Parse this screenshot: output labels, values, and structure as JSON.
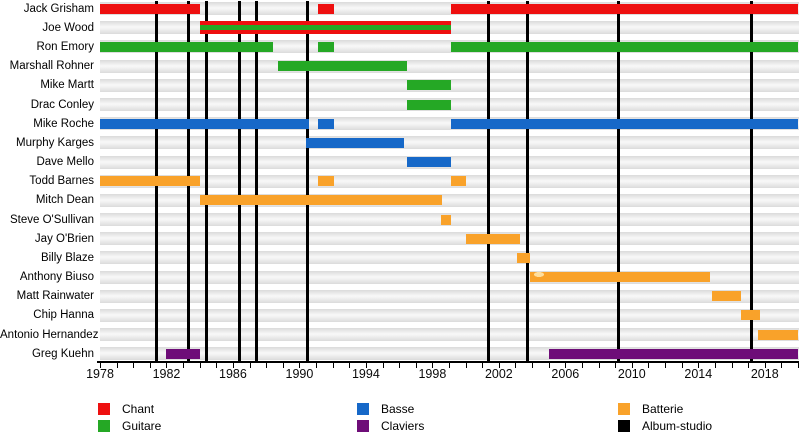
{
  "chart_data": {
    "type": "timeline",
    "title": "",
    "description": "Band members timeline (Gantt-style) with studio-album release markers",
    "x_axis": {
      "start": 1978,
      "end": 2020,
      "tick_every_years": 1,
      "label_every_years": 4,
      "year_labels": [
        "1978",
        "1982",
        "1986",
        "1990",
        "1994",
        "1998",
        "2002",
        "2006",
        "2010",
        "2014",
        "2018"
      ]
    },
    "colors": {
      "chant": "#ee1010",
      "guitare": "#25a825",
      "basse": "#1668c8",
      "claviers": "#6e0d78",
      "batterie": "#f9a22a",
      "album": "#000000",
      "row_band": "#e2e2e2"
    },
    "album_lines_years": [
      1981.4,
      1983.3,
      1984.4,
      1986.4,
      1987.4,
      1990.5,
      2001.4,
      2003.7,
      2009.2,
      2017.2
    ],
    "members": [
      {
        "name": "Jack Grisham",
        "role": "chant",
        "bars": [
          [
            1978.0,
            1984.0
          ],
          [
            1991.1,
            1992.1
          ],
          [
            1999.1,
            2020.0
          ]
        ]
      },
      {
        "name": "Joe Wood",
        "role": "chant+guitare",
        "bars": [
          [
            1984.0,
            1999.1
          ]
        ]
      },
      {
        "name": "Ron Emory",
        "role": "guitare",
        "bars": [
          [
            1978.0,
            1988.4
          ],
          [
            1991.1,
            1992.1
          ],
          [
            1999.1,
            2020.0
          ]
        ]
      },
      {
        "name": "Marshall Rohner",
        "role": "guitare",
        "bars": [
          [
            1988.7,
            1996.5
          ]
        ]
      },
      {
        "name": "Mike Martt",
        "role": "guitare",
        "bars": [
          [
            1996.5,
            1999.1
          ]
        ]
      },
      {
        "name": "Drac Conley",
        "role": "guitare",
        "bars": [
          [
            1996.5,
            1999.1
          ]
        ]
      },
      {
        "name": "Mike Roche",
        "role": "basse",
        "bars": [
          [
            1978.0,
            1990.6
          ],
          [
            1991.1,
            1992.1
          ],
          [
            1999.1,
            2020.0
          ]
        ]
      },
      {
        "name": "Murphy Karges",
        "role": "basse",
        "bars": [
          [
            1990.4,
            1996.3
          ]
        ]
      },
      {
        "name": "Dave Mello",
        "role": "basse",
        "bars": [
          [
            1996.5,
            1999.1
          ]
        ]
      },
      {
        "name": "Todd Barnes",
        "role": "batterie",
        "bars": [
          [
            1978.0,
            1984.0
          ],
          [
            1991.1,
            1992.1
          ],
          [
            1999.1,
            2000.0
          ]
        ]
      },
      {
        "name": "Mitch Dean",
        "role": "batterie",
        "bars": [
          [
            1984.0,
            1998.6
          ]
        ]
      },
      {
        "name": "Steve O'Sullivan",
        "role": "batterie",
        "bars": [
          [
            1998.5,
            1999.1
          ]
        ]
      },
      {
        "name": "Jay O'Brien",
        "role": "batterie",
        "bars": [
          [
            2000.0,
            2003.3
          ]
        ]
      },
      {
        "name": "Billy Blaze",
        "role": "batterie",
        "bars": [
          [
            2003.1,
            2003.9
          ]
        ]
      },
      {
        "name": "Anthony Biuso",
        "role": "batterie",
        "bars": [
          [
            2003.9,
            2014.7
          ]
        ],
        "textured": true
      },
      {
        "name": "Matt Rainwater",
        "role": "batterie",
        "bars": [
          [
            2014.8,
            2016.6
          ]
        ]
      },
      {
        "name": "Chip Hanna",
        "role": "batterie",
        "bars": [
          [
            2016.6,
            2017.7
          ]
        ]
      },
      {
        "name": "Antonio Hernandez",
        "role": "batterie",
        "bars": [
          [
            2017.6,
            2020.0
          ]
        ]
      },
      {
        "name": "Greg Kuehn",
        "role": "claviers",
        "bars": [
          [
            1982.0,
            1984.0
          ],
          [
            2005.0,
            2020.0
          ]
        ]
      }
    ],
    "legend": {
      "columns": [
        [
          {
            "label": "Chant",
            "color_key": "chant"
          },
          {
            "label": "Guitare",
            "color_key": "guitare"
          }
        ],
        [
          {
            "label": "Basse",
            "color_key": "basse"
          },
          {
            "label": "Claviers",
            "color_key": "claviers"
          }
        ],
        [
          {
            "label": "Batterie",
            "color_key": "batterie"
          },
          {
            "label": "Album-studio",
            "color_key": "album"
          }
        ]
      ]
    }
  }
}
